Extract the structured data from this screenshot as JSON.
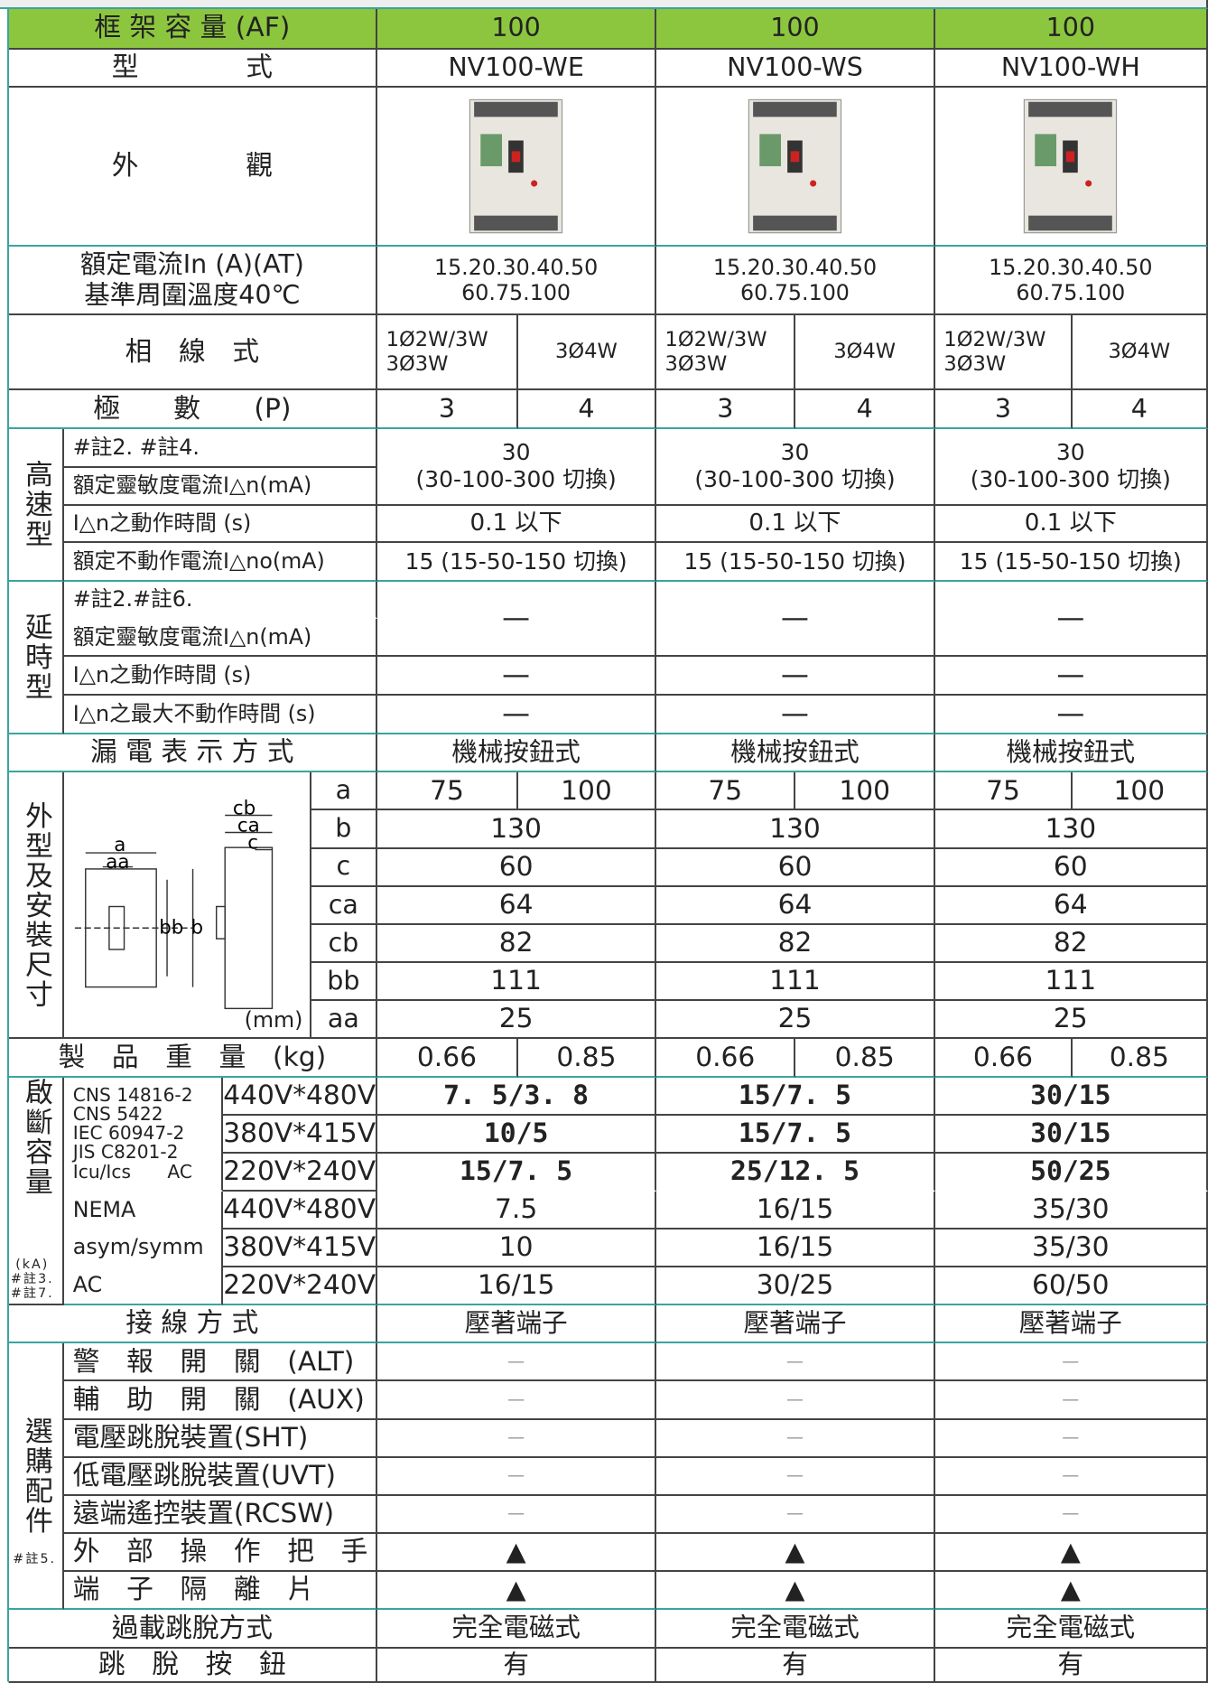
{
  "table": {
    "frame_capacity": {
      "label": "框 架 容 量 (AF)",
      "values": [
        "100",
        "100",
        "100"
      ]
    },
    "model": {
      "label": "型　　　　式",
      "values": [
        "NV100-WE",
        "NV100-WS",
        "NV100-WH"
      ]
    },
    "appearance": {
      "label": "外　　　　觀"
    },
    "rated_current": {
      "label": [
        "額定電流In (A)(AT)",
        "基準周圍溫度40℃"
      ],
      "values": [
        [
          "15.20.30.40.50",
          "60.75.100"
        ],
        [
          "15.20.30.40.50",
          "60.75.100"
        ],
        [
          "15.20.30.40.50",
          "60.75.100"
        ]
      ]
    },
    "phase_wire": {
      "label": "相　線　式",
      "values": [
        [
          "1Ø2W/3W",
          "3Ø3W",
          "3Ø4W"
        ],
        [
          "1Ø2W/3W",
          "3Ø3W",
          "3Ø4W"
        ],
        [
          "1Ø2W/3W",
          "3Ø3W",
          "3Ø4W"
        ]
      ]
    },
    "poles": {
      "label": "極　　數　　(P)",
      "values": [
        [
          "3",
          "4"
        ],
        [
          "3",
          "4"
        ],
        [
          "3",
          "4"
        ]
      ]
    },
    "high_speed": {
      "group": "高速型",
      "labels": [
        "#註2. #註4.",
        "額定靈敏度電流I△n(mA)",
        "I△n之動作時間 (s)",
        "額定不動作電流I△no(mA)"
      ],
      "sensitivity": [
        [
          "30",
          "(30-100-300 切換)"
        ],
        [
          "30",
          "(30-100-300 切換)"
        ],
        [
          "30",
          "(30-100-300 切換)"
        ]
      ],
      "operate_time": [
        "0.1 以下",
        "0.1 以下",
        "0.1 以下"
      ],
      "non_operate": [
        "15 (15-50-150 切換)",
        "15 (15-50-150 切換)",
        "15 (15-50-150 切換)"
      ]
    },
    "time_delay": {
      "group": "延時型",
      "labels": [
        "#註2.#註6.",
        "額定靈敏度電流I△n(mA)",
        "I△n之動作時間 (s)",
        "I△n之最大不動作時間 (s)"
      ],
      "sensitivity": [
        "—",
        "—",
        "—"
      ],
      "operate_time": [
        "—",
        "—",
        "—"
      ],
      "max_non_operate": [
        "—",
        "—",
        "—"
      ]
    },
    "indication": {
      "label": "漏 電 表 示 方 式",
      "values": [
        "機械按鈕式",
        "機械按鈕式",
        "機械按鈕式"
      ]
    },
    "dimensions": {
      "group": "外型及安裝尺寸",
      "unit": "(mm)",
      "diagram_labels": [
        "cb",
        "ca",
        "c",
        "a",
        "aa",
        "bb",
        "b"
      ],
      "rows": [
        {
          "name": "a",
          "values": [
            [
              "75",
              "100"
            ],
            [
              "75",
              "100"
            ],
            [
              "75",
              "100"
            ]
          ]
        },
        {
          "name": "b",
          "values": [
            "130",
            "130",
            "130"
          ]
        },
        {
          "name": "c",
          "values": [
            "60",
            "60",
            "60"
          ]
        },
        {
          "name": "ca",
          "values": [
            "64",
            "64",
            "64"
          ]
        },
        {
          "name": "cb",
          "values": [
            "82",
            "82",
            "82"
          ]
        },
        {
          "name": "bb",
          "values": [
            "111",
            "111",
            "111"
          ]
        },
        {
          "name": "aa",
          "values": [
            "25",
            "25",
            "25"
          ]
        }
      ]
    },
    "weight": {
      "label": "製　品　重　量　(kg)",
      "values": [
        [
          "0.66",
          "0.85"
        ],
        [
          "0.66",
          "0.85"
        ],
        [
          "0.66",
          "0.85"
        ]
      ]
    },
    "breaking_capacity": {
      "group": "啟斷容量",
      "unit": "(kA)",
      "notes": [
        "#註3.",
        "#註7."
      ],
      "standards": [
        "CNS 14816-2",
        "CNS 5422",
        "IEC 60947-2",
        "JIS C8201-2",
        "Icu/Ics　　AC"
      ],
      "nema": [
        "NEMA",
        "asym/symm",
        "AC"
      ],
      "rows": [
        {
          "voltage": "440V*480V",
          "values": [
            "7. 5/3. 8",
            "15/7. 5",
            "30/15"
          ]
        },
        {
          "voltage": "380V*415V",
          "values": [
            "10/5",
            "15/7. 5",
            "30/15"
          ]
        },
        {
          "voltage": "220V*240V",
          "values": [
            "15/7. 5",
            "25/12. 5",
            "50/25"
          ]
        },
        {
          "voltage": "440V*480V",
          "values": [
            "7.5",
            "16/15",
            "35/30"
          ]
        },
        {
          "voltage": "380V*415V",
          "values": [
            "10",
            "16/15",
            "35/30"
          ]
        },
        {
          "voltage": "220V*240V",
          "values": [
            "16/15",
            "30/25",
            "60/50"
          ]
        }
      ]
    },
    "wiring": {
      "label": "接 線 方 式",
      "values": [
        "壓著端子",
        "壓著端子",
        "壓著端子"
      ]
    },
    "options": {
      "group": "選購配件",
      "note": "#註5.",
      "rows": [
        {
          "label": "警　報　開　關　(ALT)",
          "values": [
            "—",
            "—",
            "—"
          ]
        },
        {
          "label": "輔　助　開　關　(AUX)",
          "values": [
            "—",
            "—",
            "—"
          ]
        },
        {
          "label": "電壓跳脫裝置(SHT)",
          "values": [
            "—",
            "—",
            "—"
          ]
        },
        {
          "label": "低電壓跳脫裝置(UVT)",
          "values": [
            "—",
            "—",
            "—"
          ]
        },
        {
          "label": "遠端遙控裝置(RCSW)",
          "values": [
            "—",
            "—",
            "—"
          ]
        },
        {
          "label": "外　部　操　作　把　手",
          "values": [
            "▲",
            "▲",
            "▲"
          ]
        },
        {
          "label": "端　子　隔　離　片",
          "values": [
            "▲",
            "▲",
            "▲"
          ]
        }
      ]
    },
    "trip_method": {
      "label": "過載跳脫方式",
      "values": [
        "完全電磁式",
        "完全電磁式",
        "完全電磁式"
      ]
    },
    "trip_button": {
      "label": "跳　脫　按　鈕",
      "values": [
        "有",
        "有",
        "有"
      ]
    }
  }
}
